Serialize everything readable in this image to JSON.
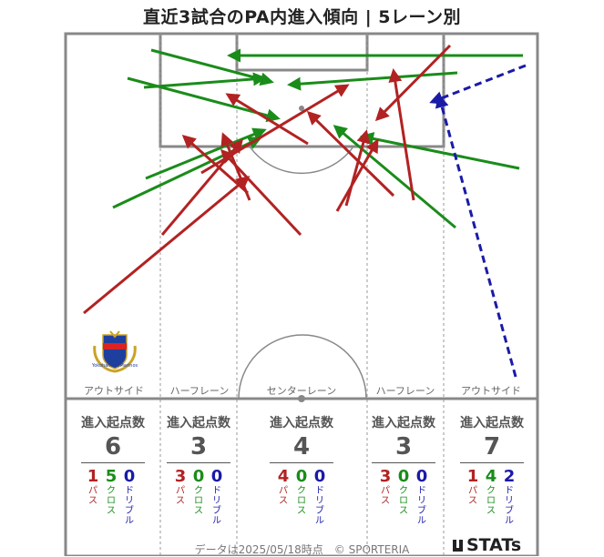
{
  "title": "直近3試合のPA内進入傾向 | 5レーン別",
  "colors": {
    "pass": "#b22222",
    "cross": "#1a8c1a",
    "dribble": "#1a1aa8",
    "line": "#777777"
  },
  "team_logo": {
    "name": "Yokohama F.Marinos"
  },
  "lanes": [
    {
      "label": "アウトサイド",
      "stat_title": "進入起点数",
      "total": "6",
      "pass": "1",
      "cross": "5",
      "dribble": "0"
    },
    {
      "label": "ハーフレーン",
      "stat_title": "進入起点数",
      "total": "3",
      "pass": "3",
      "cross": "0",
      "dribble": "0"
    },
    {
      "label": "センターレーン",
      "stat_title": "進入起点数",
      "total": "4",
      "pass": "4",
      "cross": "0",
      "dribble": "0"
    },
    {
      "label": "ハーフレーン",
      "stat_title": "進入起点数",
      "total": "3",
      "pass": "3",
      "cross": "0",
      "dribble": "0"
    },
    {
      "label": "アウトサイド",
      "stat_title": "進入起点数",
      "total": "7",
      "pass": "1",
      "cross": "4",
      "dribble": "2"
    }
  ],
  "legend": {
    "pass": "パス",
    "cross": "クロス",
    "dribble": "ドリブル"
  },
  "footer": "データは2025/05/18時点　© SPORTERIA",
  "brand": "STATs"
}
